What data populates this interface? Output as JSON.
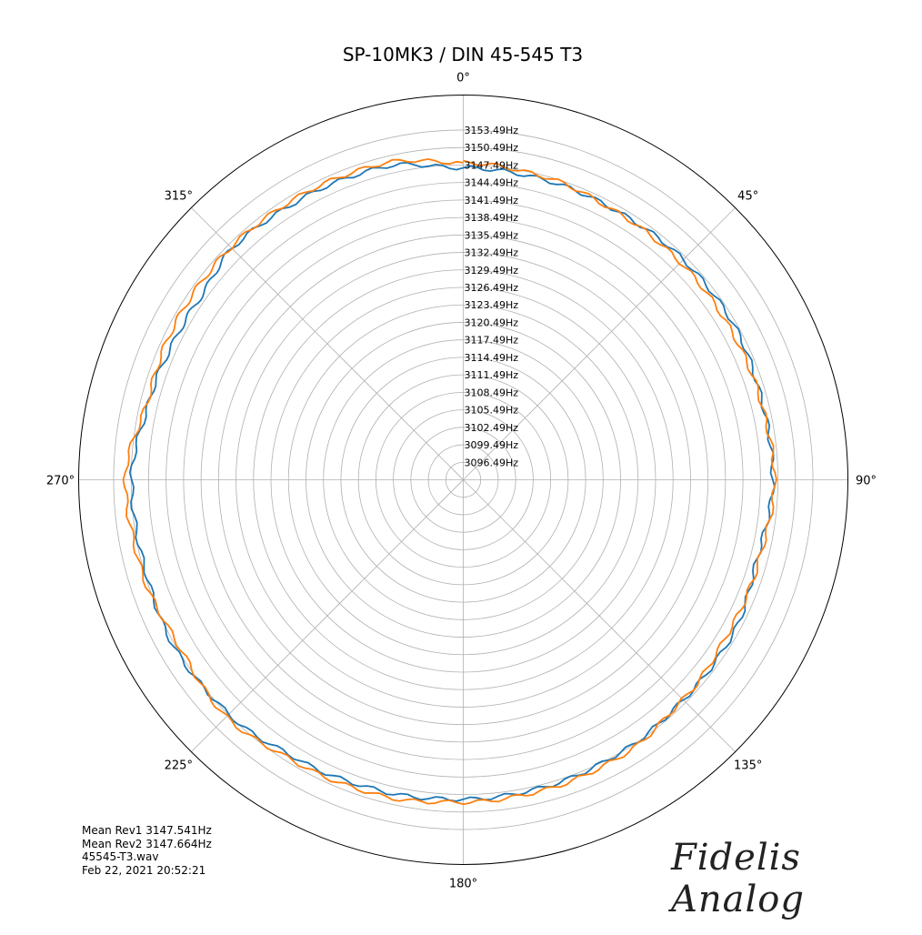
{
  "chart_data": {
    "type": "polar-line",
    "title": "SP-10MK3 / DIN 45-545 T3",
    "angle_labels": [
      "0°",
      "45°",
      "90°",
      "135°",
      "180°",
      "225°",
      "270°",
      "315°"
    ],
    "radial_tick_labels": [
      "3096.49Hz",
      "3099.49Hz",
      "3102.49Hz",
      "3105.49Hz",
      "3108.49Hz",
      "3111.49Hz",
      "3114.49Hz",
      "3117.49Hz",
      "3120.49Hz",
      "3123.49Hz",
      "3126.49Hz",
      "3129.49Hz",
      "3132.49Hz",
      "3135.49Hz",
      "3138.49Hz",
      "3141.49Hz",
      "3144.49Hz",
      "3147.49Hz",
      "3150.49Hz",
      "3153.49Hz"
    ],
    "r_min": 3090.49,
    "r_step": 3,
    "r_max": 3156.49,
    "grid": true,
    "direction": "clockwise",
    "zero_location": "top",
    "series": [
      {
        "color": "#1f77b4",
        "angles_deg": [
          0,
          15,
          30,
          45,
          60,
          75,
          90,
          105,
          120,
          135,
          150,
          165,
          180,
          195,
          210,
          225,
          240,
          255,
          270,
          285,
          297,
          305,
          315,
          330,
          345,
          360
        ],
        "values_hz": [
          3144.0,
          3143.8,
          3143.6,
          3143.9,
          3144.0,
          3143.5,
          3143.6,
          3142.7,
          3143.8,
          3143.9,
          3144.5,
          3145.0,
          3145.3,
          3145.7,
          3146.2,
          3147.4,
          3147.8,
          3147.2,
          3147.4,
          3146.0,
          3145.5,
          3145.4,
          3146.6,
          3146.1,
          3145.9,
          3144.0
        ]
      },
      {
        "color": "#ff7f0e",
        "angles_deg": [
          0,
          15,
          30,
          45,
          60,
          75,
          90,
          105,
          120,
          135,
          150,
          165,
          180,
          195,
          210,
          225,
          240,
          255,
          270,
          285,
          297,
          305,
          315,
          330,
          345,
          360
        ],
        "values_hz": [
          3144.9,
          3144.3,
          3143.4,
          3143.2,
          3143.1,
          3143.3,
          3143.9,
          3143.1,
          3143.0,
          3143.8,
          3145.1,
          3145.5,
          3145.8,
          3146.5,
          3146.8,
          3148.0,
          3147.0,
          3147.9,
          3148.5,
          3146.3,
          3146.7,
          3146.8,
          3146.9,
          3146.7,
          3146.5,
          3144.9
        ]
      }
    ]
  },
  "info": {
    "mean_rev1": "Mean Rev1 3147.541Hz",
    "mean_rev2": "Mean Rev2 3147.664Hz",
    "file": "45545-T3.wav",
    "timestamp": "Feb 22, 2021 20:52:21"
  },
  "logo_text": "Fidelis Analog"
}
